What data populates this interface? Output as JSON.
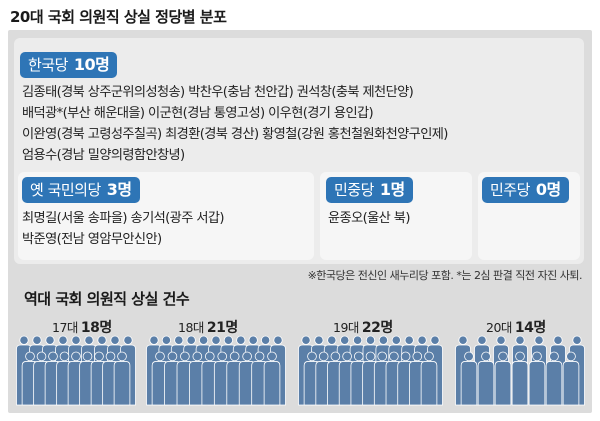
{
  "title": "20대 국회 의원직 상실 정당별 분포",
  "parties": {
    "liberty_korea": {
      "name": "한국당",
      "count": "10명",
      "lines": [
        "김종태(경북 상주군위의성청송)  박찬우(충남 천안갑)  권석창(충북 제천단양)",
        "배덕광*(부산 해운대을)  이군현(경남 통영고성)  이우현(경기 용인갑)",
        "이완영(경북 고령성주칠곡)  최경환(경북 경산)  황영철(강원 홍천철원화천양구인제)",
        "엄용수(경남 밀양의령함안창녕)"
      ]
    },
    "people": {
      "name": "옛 국민의당",
      "count": "3명",
      "lines": [
        "최명길(서울 송파을)  송기석(광주 서갑)",
        "박준영(전남 영암무안신안)"
      ]
    },
    "minjung": {
      "name": "민중당",
      "count": "1명",
      "lines": [
        "윤종오(울산 북)"
      ]
    },
    "democratic": {
      "name": "민주당",
      "count": "0명"
    }
  },
  "note": "※한국당은 전신인 새누리당 포함. *는 2심 판결 직전 자진 사퇴.",
  "history": {
    "title": "역대 국회 의원직 상실 건수",
    "terms": [
      {
        "term": "17대",
        "count": "18명",
        "people": 18
      },
      {
        "term": "18대",
        "count": "21명",
        "people": 21
      },
      {
        "term": "19대",
        "count": "22명",
        "people": 22
      },
      {
        "term": "20대",
        "count": "14명",
        "people": 14
      }
    ]
  },
  "colors": {
    "liberty_korea": "#2e75b6",
    "people_party": "#2e75b6",
    "minjung": "#2e75b6",
    "democratic": "#2e75b6",
    "person_icon": "#5b7fa8",
    "frame": "#dcdcdc"
  }
}
